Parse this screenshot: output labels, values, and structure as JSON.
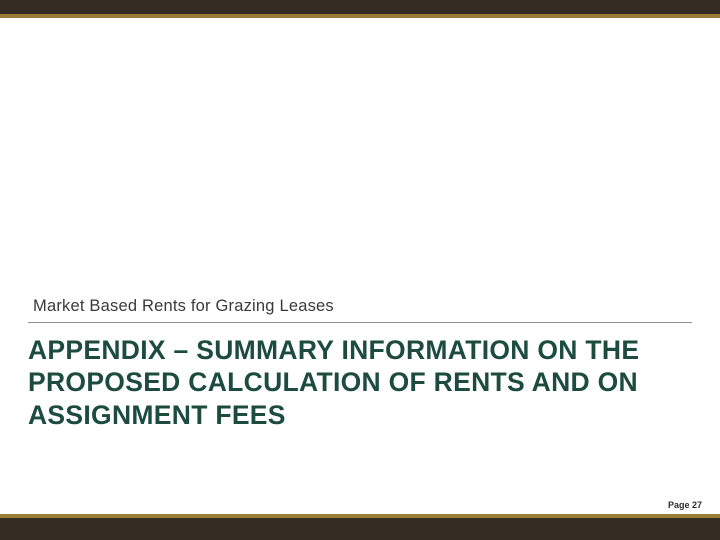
{
  "slide": {
    "subtitle": "Market Based Rents for Grazing Leases",
    "title": "APPENDIX – SUMMARY INFORMATION ON THE PROPOSED CALCULATION OF RENTS AND ON ASSIGNMENT FEES",
    "page_label": "Page 27"
  },
  "colors": {
    "bar_dark": "#332c22",
    "gold": "#9a7d35",
    "divider": "#8f8f8f",
    "subtitle_text": "#3a3a3a",
    "title_text": "#1d4c3e",
    "page_text": "#2e2e2e",
    "background": "#ffffff"
  }
}
